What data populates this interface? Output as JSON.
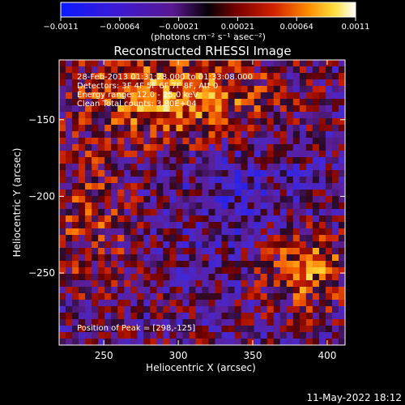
{
  "chart_data": {
    "type": "heatmap",
    "title": "Reconstructed RHESSI Image",
    "xlabel": "Heliocentric X (arcsec)",
    "ylabel": "Heliocentric Y (arcsec)",
    "xlim": [
      220,
      412
    ],
    "ylim": [
      -297,
      -111
    ],
    "x_ticks": [
      250,
      300,
      350,
      400
    ],
    "y_ticks": [
      -150,
      -200,
      -250
    ],
    "x_tick_labels": [
      "250",
      "300",
      "350",
      "400"
    ],
    "y_tick_labels": [
      "−150",
      "−200",
      "−250"
    ],
    "colorbar": {
      "range": [
        -0.0011,
        0.0011
      ],
      "tick_labels": [
        "−0.0011",
        "−0.00064",
        "−0.00021",
        "0.00021",
        "0.00064",
        "0.0011"
      ],
      "unit_label": "(photons cm⁻² s⁻¹ asec⁻²)"
    },
    "annotations": [
      "28-Feb-2013 01:31:28.000 to 01:33:08.000",
      "Detectors: 3F 4F 5F 6F 7F 8F, Att 0",
      "Energy range: 12.0 - 25.0 keV",
      "Clean      Total counts: 3.80E+04"
    ],
    "peak_label": "Position of Peak = [298,-125]",
    "grid": false
  },
  "footer": {
    "date": "11-May-2022 18:12"
  }
}
